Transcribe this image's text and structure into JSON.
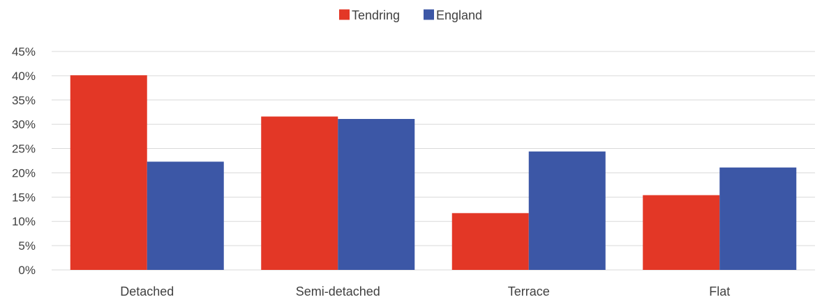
{
  "chart_data": {
    "type": "bar",
    "title": "",
    "xlabel": "",
    "ylabel": "",
    "categories": [
      "Detached",
      "Semi-detached",
      "Terrace",
      "Flat"
    ],
    "series": [
      {
        "name": "Tendring",
        "color": "#E33726",
        "values": [
          40.1,
          31.6,
          11.7,
          15.4
        ]
      },
      {
        "name": "England",
        "color": "#3C57A6",
        "values": [
          22.3,
          31.1,
          24.4,
          21.1
        ]
      }
    ],
    "ylim": [
      0,
      45
    ],
    "yticks": [
      "0%",
      "5%",
      "10%",
      "15%",
      "20%",
      "25%",
      "30%",
      "35%",
      "40%",
      "45%"
    ],
    "grid": true,
    "legend_position": "top-center",
    "gridline_color": "#D9D9D9"
  }
}
